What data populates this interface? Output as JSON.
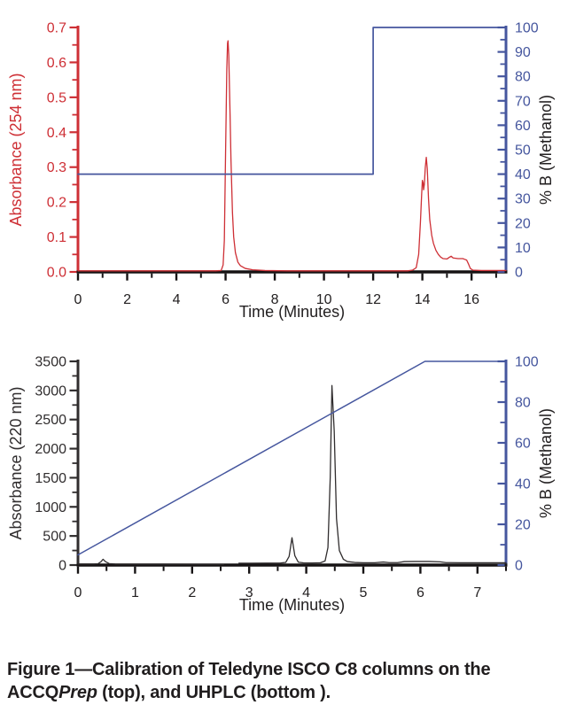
{
  "caption": {
    "part1": "Figure 1—Calibration of Teledyne ISCO C8 columns on the ACCQ",
    "italic": "Prep",
    "part2": " (top), and UHPLC (bottom )."
  },
  "chart_data": [
    {
      "type": "line",
      "title": "",
      "xlabel": "Time (Minutes)",
      "x_axis": {
        "min": 0,
        "max": 17.4,
        "major": 2,
        "minor": 1,
        "decimals": 0,
        "color": "#161314",
        "label_color": "#232021"
      },
      "left_axis": {
        "label": "Absorbance (254 nm)",
        "min": 0,
        "max": 0.7,
        "major": 0.1,
        "minor": 0.05,
        "decimals": 1,
        "color": "#ce2f35",
        "label_color": "#ce2f35"
      },
      "right_axis": {
        "label": "% B (Methanol)",
        "min": 0,
        "max": 100,
        "major": 10,
        "minor": 5,
        "decimals": 0,
        "color": "#45569e",
        "label_color": "#232021",
        "tick_label_color": "#45569e"
      },
      "grid": false,
      "legend": null,
      "series": [
        {
          "name": "absorbance-254-trace",
          "axis": "left",
          "color": "#ce2f35",
          "width": 1.3,
          "segments": [
            [
              [
                0,
                0.003
              ],
              [
                2,
                0.003
              ],
              [
                4,
                0.003
              ],
              [
                5.6,
                0.003
              ],
              [
                5.82,
                0.004
              ],
              [
                5.9,
                0.02
              ],
              [
                5.95,
                0.09
              ],
              [
                6.0,
                0.34
              ],
              [
                6.05,
                0.58
              ],
              [
                6.08,
                0.655
              ],
              [
                6.1,
                0.662
              ],
              [
                6.13,
                0.62
              ],
              [
                6.18,
                0.46
              ],
              [
                6.22,
                0.32
              ],
              [
                6.28,
                0.17
              ],
              [
                6.33,
                0.1
              ],
              [
                6.4,
                0.055
              ],
              [
                6.5,
                0.028
              ],
              [
                6.6,
                0.018
              ],
              [
                6.8,
                0.01
              ],
              [
                7.1,
                0.006
              ],
              [
                7.6,
                0.004
              ],
              [
                8.5,
                0.003
              ],
              [
                10,
                0.003
              ],
              [
                12,
                0.003
              ],
              [
                13.4,
                0.003
              ],
              [
                13.6,
                0.005
              ],
              [
                13.75,
                0.012
              ],
              [
                13.85,
                0.05
              ],
              [
                13.92,
                0.14
              ],
              [
                13.97,
                0.22
              ],
              [
                14.0,
                0.262
              ],
              [
                14.03,
                0.255
              ],
              [
                14.05,
                0.235
              ],
              [
                14.08,
                0.25
              ],
              [
                14.12,
                0.3
              ],
              [
                14.16,
                0.328
              ],
              [
                14.2,
                0.295
              ],
              [
                14.25,
                0.21
              ],
              [
                14.3,
                0.15
              ],
              [
                14.38,
                0.105
              ],
              [
                14.45,
                0.082
              ],
              [
                14.55,
                0.062
              ],
              [
                14.65,
                0.05
              ],
              [
                14.75,
                0.042
              ],
              [
                14.85,
                0.038
              ],
              [
                15.0,
                0.037
              ],
              [
                15.1,
                0.042
              ],
              [
                15.17,
                0.045
              ],
              [
                15.25,
                0.04
              ],
              [
                15.45,
                0.038
              ],
              [
                15.65,
                0.038
              ],
              [
                15.72,
                0.036
              ],
              [
                15.8,
                0.034
              ],
              [
                15.88,
                0.022
              ],
              [
                15.95,
                0.01
              ],
              [
                16.05,
                0.005
              ],
              [
                16.4,
                0.004
              ],
              [
                17.0,
                0.004
              ],
              [
                17.4,
                0.004
              ]
            ]
          ]
        },
        {
          "name": "gradient-step-trace",
          "axis": "right",
          "color": "#45569e",
          "width": 1.7,
          "segments": [
            [
              [
                0,
                40
              ],
              [
                12,
                40
              ],
              [
                12,
                100
              ],
              [
                17.4,
                100
              ]
            ]
          ]
        }
      ]
    },
    {
      "type": "line",
      "title": "",
      "xlabel": "Time (Minutes)",
      "x_axis": {
        "min": 0,
        "max": 7.5,
        "major": 1,
        "minor": 0.5,
        "decimals": 0,
        "color": "#161314",
        "label_color": "#232021"
      },
      "left_axis": {
        "label": "Absorbance (220 nm)",
        "min": 0,
        "max": 3500,
        "major": 500,
        "minor": 250,
        "decimals": 0,
        "color": "#302d2e",
        "label_color": "#302d2e"
      },
      "right_axis": {
        "label": "% B (Methanol)",
        "min": 0,
        "max": 100,
        "major": 20,
        "minor": 10,
        "decimals": 0,
        "color": "#45569e",
        "label_color": "#232021",
        "tick_label_color": "#45569e"
      },
      "grid": false,
      "legend": null,
      "series": [
        {
          "name": "absorbance-220-trace",
          "axis": "left",
          "color": "#302d2e",
          "width": 1.3,
          "segments": [
            [
              [
                0,
                18
              ],
              [
                0.28,
                18
              ],
              [
                0.35,
                22
              ],
              [
                0.4,
                55
              ],
              [
                0.44,
                100
              ],
              [
                0.48,
                60
              ],
              [
                0.55,
                24
              ],
              [
                0.65,
                18
              ],
              [
                1.0,
                16
              ],
              [
                1.5,
                16
              ],
              [
                2.0,
                15
              ],
              [
                2.3,
                15
              ],
              [
                2.55,
                14
              ]
            ],
            [
              [
                2.82,
                32
              ],
              [
                3.0,
                32
              ],
              [
                3.3,
                33
              ],
              [
                3.55,
                35
              ],
              [
                3.64,
                45
              ],
              [
                3.7,
                150
              ],
              [
                3.75,
                470
              ],
              [
                3.8,
                160
              ],
              [
                3.86,
                50
              ],
              [
                3.95,
                38
              ],
              [
                4.1,
                36
              ],
              [
                4.25,
                40
              ],
              [
                4.33,
                70
              ],
              [
                4.38,
                300
              ],
              [
                4.42,
                1500
              ],
              [
                4.45,
                3085
              ],
              [
                4.49,
                2300
              ],
              [
                4.53,
                800
              ],
              [
                4.58,
                250
              ],
              [
                4.65,
                100
              ],
              [
                4.72,
                60
              ],
              [
                4.85,
                45
              ],
              [
                5.0,
                40
              ],
              [
                5.2,
                40
              ],
              [
                5.35,
                52
              ],
              [
                5.45,
                42
              ],
              [
                5.6,
                42
              ],
              [
                5.72,
                60
              ],
              [
                5.9,
                62
              ],
              [
                6.15,
                62
              ],
              [
                6.35,
                55
              ],
              [
                6.45,
                42
              ],
              [
                6.7,
                40
              ],
              [
                7.0,
                40
              ],
              [
                7.3,
                40
              ],
              [
                7.5,
                40
              ]
            ]
          ]
        },
        {
          "name": "gradient-ramp-trace",
          "axis": "right",
          "color": "#45569e",
          "width": 1.5,
          "segments": [
            [
              [
                0,
                5
              ],
              [
                6.08,
                100
              ],
              [
                7.5,
                100
              ]
            ]
          ]
        }
      ]
    }
  ]
}
